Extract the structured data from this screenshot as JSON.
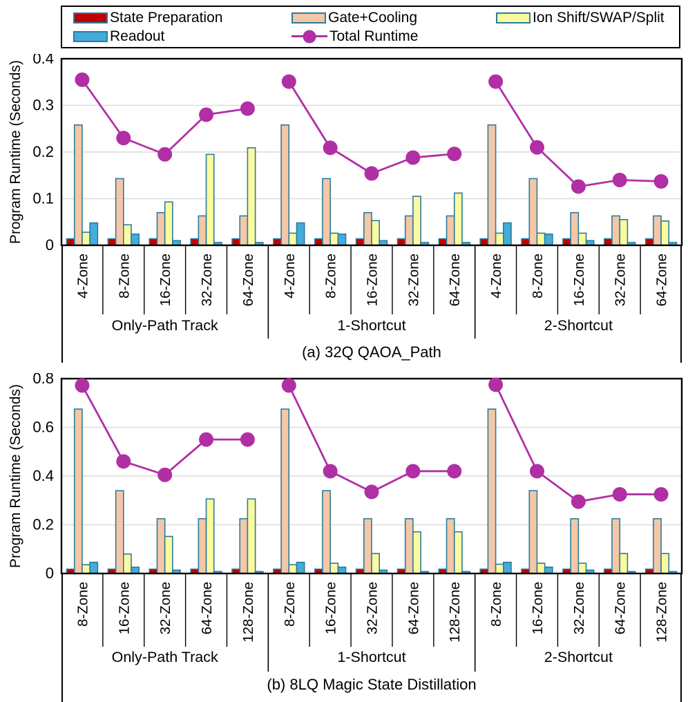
{
  "legend": {
    "bar_border_color": "#2B7C9E",
    "items": [
      {
        "label": "State Preparation",
        "type": "bar",
        "color": "#C00000"
      },
      {
        "label": "Gate+Cooling",
        "type": "bar",
        "color": "#F4C7A6"
      },
      {
        "label": "Ion Shift/SWAP/Split",
        "type": "bar",
        "color": "#FBFA9E"
      },
      {
        "label": "Readout",
        "type": "bar",
        "color": "#44ACDA"
      },
      {
        "label": "Total Runtime",
        "type": "line",
        "color": "#B02FA4"
      }
    ]
  },
  "chart_data": [
    {
      "type": "bar",
      "caption": "(a) 32Q QAOA_Path",
      "ylabel": "Program Runtime (Seconds)",
      "ylim": [
        0,
        0.4
      ],
      "yticks": [
        0,
        0.1,
        0.2,
        0.3,
        0.4
      ],
      "ytick_labels": [
        "0",
        "0.1",
        "0.2",
        "0.3",
        "0.4"
      ],
      "grid": "horizontal, light gray",
      "legend_position": "top, outside",
      "groups": [
        "Only-Path Track",
        "1-Shortcut",
        "2-Shortcut"
      ],
      "zones": [
        "4-Zone",
        "8-Zone",
        "16-Zone",
        "32-Zone",
        "64-Zone"
      ],
      "series": [
        {
          "name": "State Preparation",
          "color": "#C00000",
          "groups": [
            [
              0.014,
              0.014,
              0.014,
              0.014,
              0.014
            ],
            [
              0.014,
              0.014,
              0.014,
              0.014,
              0.014
            ],
            [
              0.014,
              0.014,
              0.014,
              0.014,
              0.014
            ]
          ]
        },
        {
          "name": "Gate+Cooling",
          "color": "#F4C7A6",
          "groups": [
            [
              0.258,
              0.143,
              0.07,
              0.063,
              0.063
            ],
            [
              0.258,
              0.143,
              0.07,
              0.063,
              0.063
            ],
            [
              0.258,
              0.143,
              0.07,
              0.063,
              0.063
            ]
          ]
        },
        {
          "name": "Ion Shift/SWAP/Split",
          "color": "#FBFA9E",
          "groups": [
            [
              0.028,
              0.044,
              0.093,
              0.195,
              0.209
            ],
            [
              0.026,
              0.026,
              0.053,
              0.105,
              0.112
            ],
            [
              0.026,
              0.026,
              0.026,
              0.055,
              0.052
            ]
          ]
        },
        {
          "name": "Readout",
          "color": "#44ACDA",
          "groups": [
            [
              0.048,
              0.024,
              0.01,
              0.006,
              0.006
            ],
            [
              0.048,
              0.024,
              0.01,
              0.006,
              0.006
            ],
            [
              0.048,
              0.024,
              0.01,
              0.006,
              0.006
            ]
          ]
        }
      ],
      "total_runtime": {
        "name": "Total Runtime",
        "color": "#B02FA4",
        "groups": [
          [
            0.355,
            0.23,
            0.195,
            0.28,
            0.293
          ],
          [
            0.351,
            0.209,
            0.154,
            0.188,
            0.196
          ],
          [
            0.351,
            0.21,
            0.126,
            0.14,
            0.137
          ]
        ]
      }
    },
    {
      "type": "bar",
      "caption": "(b) 8LQ Magic State Distillation",
      "ylabel": "Program Runtime (Seconds)",
      "ylim": [
        0,
        0.8
      ],
      "yticks": [
        0,
        0.2,
        0.4,
        0.6,
        0.8
      ],
      "ytick_labels": [
        "0",
        "0.2",
        "0.4",
        "0.6",
        "0.8"
      ],
      "grid": "horizontal, light gray",
      "legend_position": "top, outside",
      "groups": [
        "Only-Path Track",
        "1-Shortcut",
        "2-Shortcut"
      ],
      "zones": [
        "8-Zone",
        "16-Zone",
        "32-Zone",
        "64-Zone",
        "128-Zone"
      ],
      "series": [
        {
          "name": "State Preparation",
          "color": "#C00000",
          "groups": [
            [
              0.018,
              0.018,
              0.018,
              0.018,
              0.018
            ],
            [
              0.018,
              0.018,
              0.018,
              0.018,
              0.018
            ],
            [
              0.018,
              0.018,
              0.018,
              0.018,
              0.018
            ]
          ]
        },
        {
          "name": "Gate+Cooling",
          "color": "#F4C7A6",
          "groups": [
            [
              0.675,
              0.34,
              0.225,
              0.225,
              0.225
            ],
            [
              0.675,
              0.34,
              0.225,
              0.225,
              0.225
            ],
            [
              0.675,
              0.34,
              0.225,
              0.225,
              0.225
            ]
          ]
        },
        {
          "name": "Ion Shift/SWAP/Split",
          "color": "#FBFA9E",
          "groups": [
            [
              0.036,
              0.08,
              0.152,
              0.306,
              0.306
            ],
            [
              0.036,
              0.042,
              0.082,
              0.171,
              0.171
            ],
            [
              0.038,
              0.042,
              0.042,
              0.082,
              0.082
            ]
          ]
        },
        {
          "name": "Readout",
          "color": "#44ACDA",
          "groups": [
            [
              0.046,
              0.026,
              0.014,
              0.008,
              0.008
            ],
            [
              0.046,
              0.026,
              0.014,
              0.008,
              0.008
            ],
            [
              0.046,
              0.026,
              0.014,
              0.008,
              0.008
            ]
          ]
        }
      ],
      "total_runtime": {
        "name": "Total Runtime",
        "color": "#B02FA4",
        "groups": [
          [
            0.772,
            0.46,
            0.405,
            0.55,
            0.55
          ],
          [
            0.772,
            0.42,
            0.335,
            0.42,
            0.42
          ],
          [
            0.775,
            0.42,
            0.295,
            0.325,
            0.325
          ]
        ]
      }
    }
  ],
  "style": {
    "gridline_color": "#DCDCDC",
    "plot_border_color": "#000000",
    "background": "#FFFFFF"
  }
}
